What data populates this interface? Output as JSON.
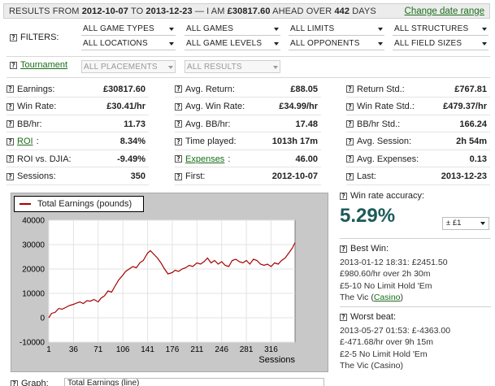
{
  "topbar": {
    "prefix": "RESULTS FROM",
    "from_date": "2012-10-07",
    "to_word": "TO",
    "to_date": "2013-12-23",
    "ahead_text": "— I AM",
    "amount": "£30817.60",
    "ahead_over": "AHEAD OVER",
    "days": "442",
    "days_word": "DAYS",
    "change_link": "Change date range"
  },
  "filters": {
    "label": "FILTERS:",
    "row1": [
      "ALL GAME TYPES",
      "ALL GAMES",
      "ALL LIMITS",
      "ALL STRUCTURES"
    ],
    "row2": [
      "ALL LOCATIONS",
      "ALL GAME LEVELS",
      "ALL OPPONENTS",
      "ALL FIELD SIZES"
    ]
  },
  "tournament": {
    "label": "Tournament",
    "placements": "ALL PLACEMENTS",
    "results": "ALL RESULTS"
  },
  "stats": {
    "col1": [
      {
        "label": "Earnings:",
        "value": "£30817.60",
        "link": false
      },
      {
        "label": "Win Rate:",
        "value": "£30.41/hr",
        "link": false
      },
      {
        "label": "BB/hr:",
        "value": "11.73",
        "link": false
      },
      {
        "label": "ROI",
        "value": "8.34%",
        "link": true
      },
      {
        "label": "ROI vs. DJIA:",
        "value": "-9.49%",
        "link": false
      },
      {
        "label": "Sessions:",
        "value": "350",
        "link": false
      }
    ],
    "col2": [
      {
        "label": "Avg. Return:",
        "value": "£88.05",
        "link": false
      },
      {
        "label": "Avg. Win Rate:",
        "value": "£34.99/hr",
        "link": false
      },
      {
        "label": "Avg. BB/hr:",
        "value": "17.48",
        "link": false
      },
      {
        "label": "Time played:",
        "value": "1013h 17m",
        "link": false
      },
      {
        "label": "Expenses",
        "value": "46.00",
        "link": true
      },
      {
        "label": "First:",
        "value": "2012-10-07",
        "link": false
      }
    ],
    "col3": [
      {
        "label": "Return Std.:",
        "value": "£767.81",
        "link": false
      },
      {
        "label": "Win Rate Std.:",
        "value": "£479.37/hr",
        "link": false
      },
      {
        "label": "BB/hr Std.:",
        "value": "166.24",
        "link": false
      },
      {
        "label": "Avg. Session:",
        "value": "2h 54m",
        "link": false
      },
      {
        "label": "Avg. Expenses:",
        "value": "0.13",
        "link": false
      },
      {
        "label": "Last:",
        "value": "2013-12-23",
        "link": false
      }
    ]
  },
  "chart_data": {
    "type": "line",
    "title": "",
    "xlabel": "Sessions",
    "ylabel": "",
    "x_ticks": [
      1,
      36,
      71,
      106,
      141,
      176,
      211,
      246,
      281,
      316
    ],
    "y_ticks": [
      -10000,
      0,
      10000,
      20000,
      30000,
      40000
    ],
    "ylim": [
      -10000,
      40000
    ],
    "xlim": [
      1,
      350
    ],
    "grid": true,
    "legend_position": "top-left",
    "series": [
      {
        "name": "Total Earnings (pounds)",
        "color": "#a40000",
        "points": [
          [
            1,
            0
          ],
          [
            5,
            1800
          ],
          [
            10,
            2200
          ],
          [
            15,
            3800
          ],
          [
            20,
            3500
          ],
          [
            25,
            4200
          ],
          [
            30,
            5000
          ],
          [
            36,
            5500
          ],
          [
            40,
            6000
          ],
          [
            45,
            6500
          ],
          [
            50,
            5800
          ],
          [
            55,
            7000
          ],
          [
            60,
            6800
          ],
          [
            65,
            7500
          ],
          [
            71,
            6500
          ],
          [
            75,
            8000
          ],
          [
            80,
            9000
          ],
          [
            85,
            11000
          ],
          [
            90,
            10500
          ],
          [
            95,
            13000
          ],
          [
            100,
            15500
          ],
          [
            106,
            17500
          ],
          [
            110,
            19000
          ],
          [
            115,
            20000
          ],
          [
            120,
            21000
          ],
          [
            125,
            20500
          ],
          [
            130,
            22500
          ],
          [
            135,
            23500
          ],
          [
            141,
            26500
          ],
          [
            145,
            27500
          ],
          [
            150,
            26000
          ],
          [
            155,
            24500
          ],
          [
            160,
            22500
          ],
          [
            165,
            20000
          ],
          [
            170,
            18000
          ],
          [
            176,
            18500
          ],
          [
            180,
            19500
          ],
          [
            185,
            19000
          ],
          [
            190,
            20000
          ],
          [
            195,
            20500
          ],
          [
            200,
            21500
          ],
          [
            205,
            21000
          ],
          [
            211,
            22500
          ],
          [
            216,
            22000
          ],
          [
            221,
            23000
          ],
          [
            226,
            24500
          ],
          [
            231,
            22500
          ],
          [
            236,
            23500
          ],
          [
            241,
            22000
          ],
          [
            246,
            23000
          ],
          [
            251,
            21500
          ],
          [
            256,
            21000
          ],
          [
            261,
            23500
          ],
          [
            266,
            24000
          ],
          [
            271,
            23000
          ],
          [
            276,
            22500
          ],
          [
            281,
            23500
          ],
          [
            286,
            22000
          ],
          [
            291,
            24000
          ],
          [
            296,
            23500
          ],
          [
            301,
            22000
          ],
          [
            306,
            21500
          ],
          [
            311,
            22000
          ],
          [
            316,
            21000
          ],
          [
            321,
            22500
          ],
          [
            326,
            22000
          ],
          [
            331,
            23500
          ],
          [
            336,
            24500
          ],
          [
            341,
            26500
          ],
          [
            346,
            28500
          ],
          [
            350,
            30800
          ]
        ]
      }
    ]
  },
  "right": {
    "accuracy_label": "Win rate accuracy:",
    "accuracy_value": "5.29%",
    "range_value": "± £1",
    "best": {
      "head": "Best Win:",
      "line1": "2013-01-12 18:31: £2451.50",
      "line2": "£980.60/hr over 2h 30m",
      "line3": "£5-10 No Limit Hold 'Em",
      "venue": "The Vic (",
      "venue_link": "Casino",
      "venue_close": ")"
    },
    "worst": {
      "head": "Worst beat:",
      "line1": "2013-05-27 01:53: £-4363.00",
      "line2": "£-471.68/hr over 9h 15m",
      "line3": "£2-5 No Limit Hold 'Em",
      "venue": "The Vic (Casino)"
    }
  },
  "bottom": {
    "label": "Graph:",
    "select": "Total Earnings (line)"
  }
}
